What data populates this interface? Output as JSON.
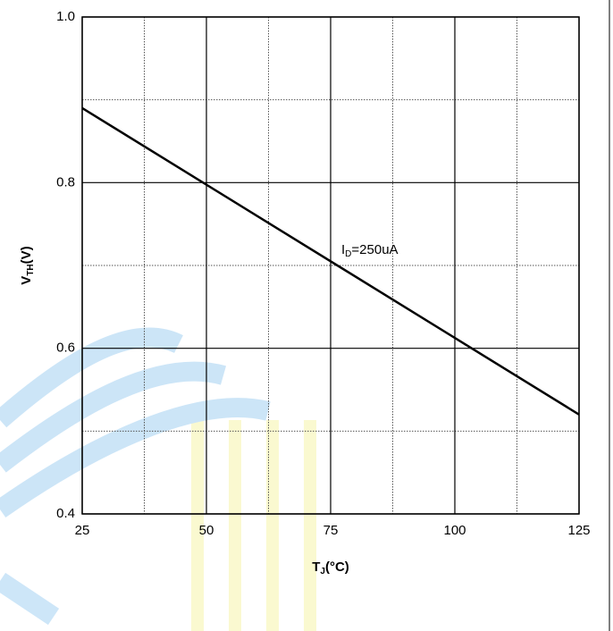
{
  "chart_data": {
    "type": "line",
    "x_label": {
      "main": "T",
      "sub": "J",
      "rest": "(°C)"
    },
    "y_label": {
      "main": "V",
      "sub": "TH",
      "rest": "(V)"
    },
    "annotation": {
      "main": "I",
      "sub": "D",
      "rest": "=250uA"
    },
    "x": [
      25,
      125
    ],
    "series": [
      {
        "color": "#000000",
        "values": [
          0.89,
          0.52
        ]
      }
    ],
    "xlim": [
      25,
      125
    ],
    "ylim": [
      0.4,
      1.0
    ],
    "xticks": [
      25,
      50,
      75,
      100,
      125
    ],
    "yticks": [
      {
        "value": 0.4,
        "label": "0.4"
      },
      {
        "value": 0.6,
        "label": "0.6"
      },
      {
        "value": 0.8,
        "label": "0.8"
      },
      {
        "value": 1.0,
        "label": "1.0"
      }
    ],
    "x_minor_grid": [
      37.5,
      62.5,
      87.5,
      112.5
    ],
    "y_minor_grid": [
      0.5,
      0.7,
      0.9
    ],
    "grid": true
  }
}
